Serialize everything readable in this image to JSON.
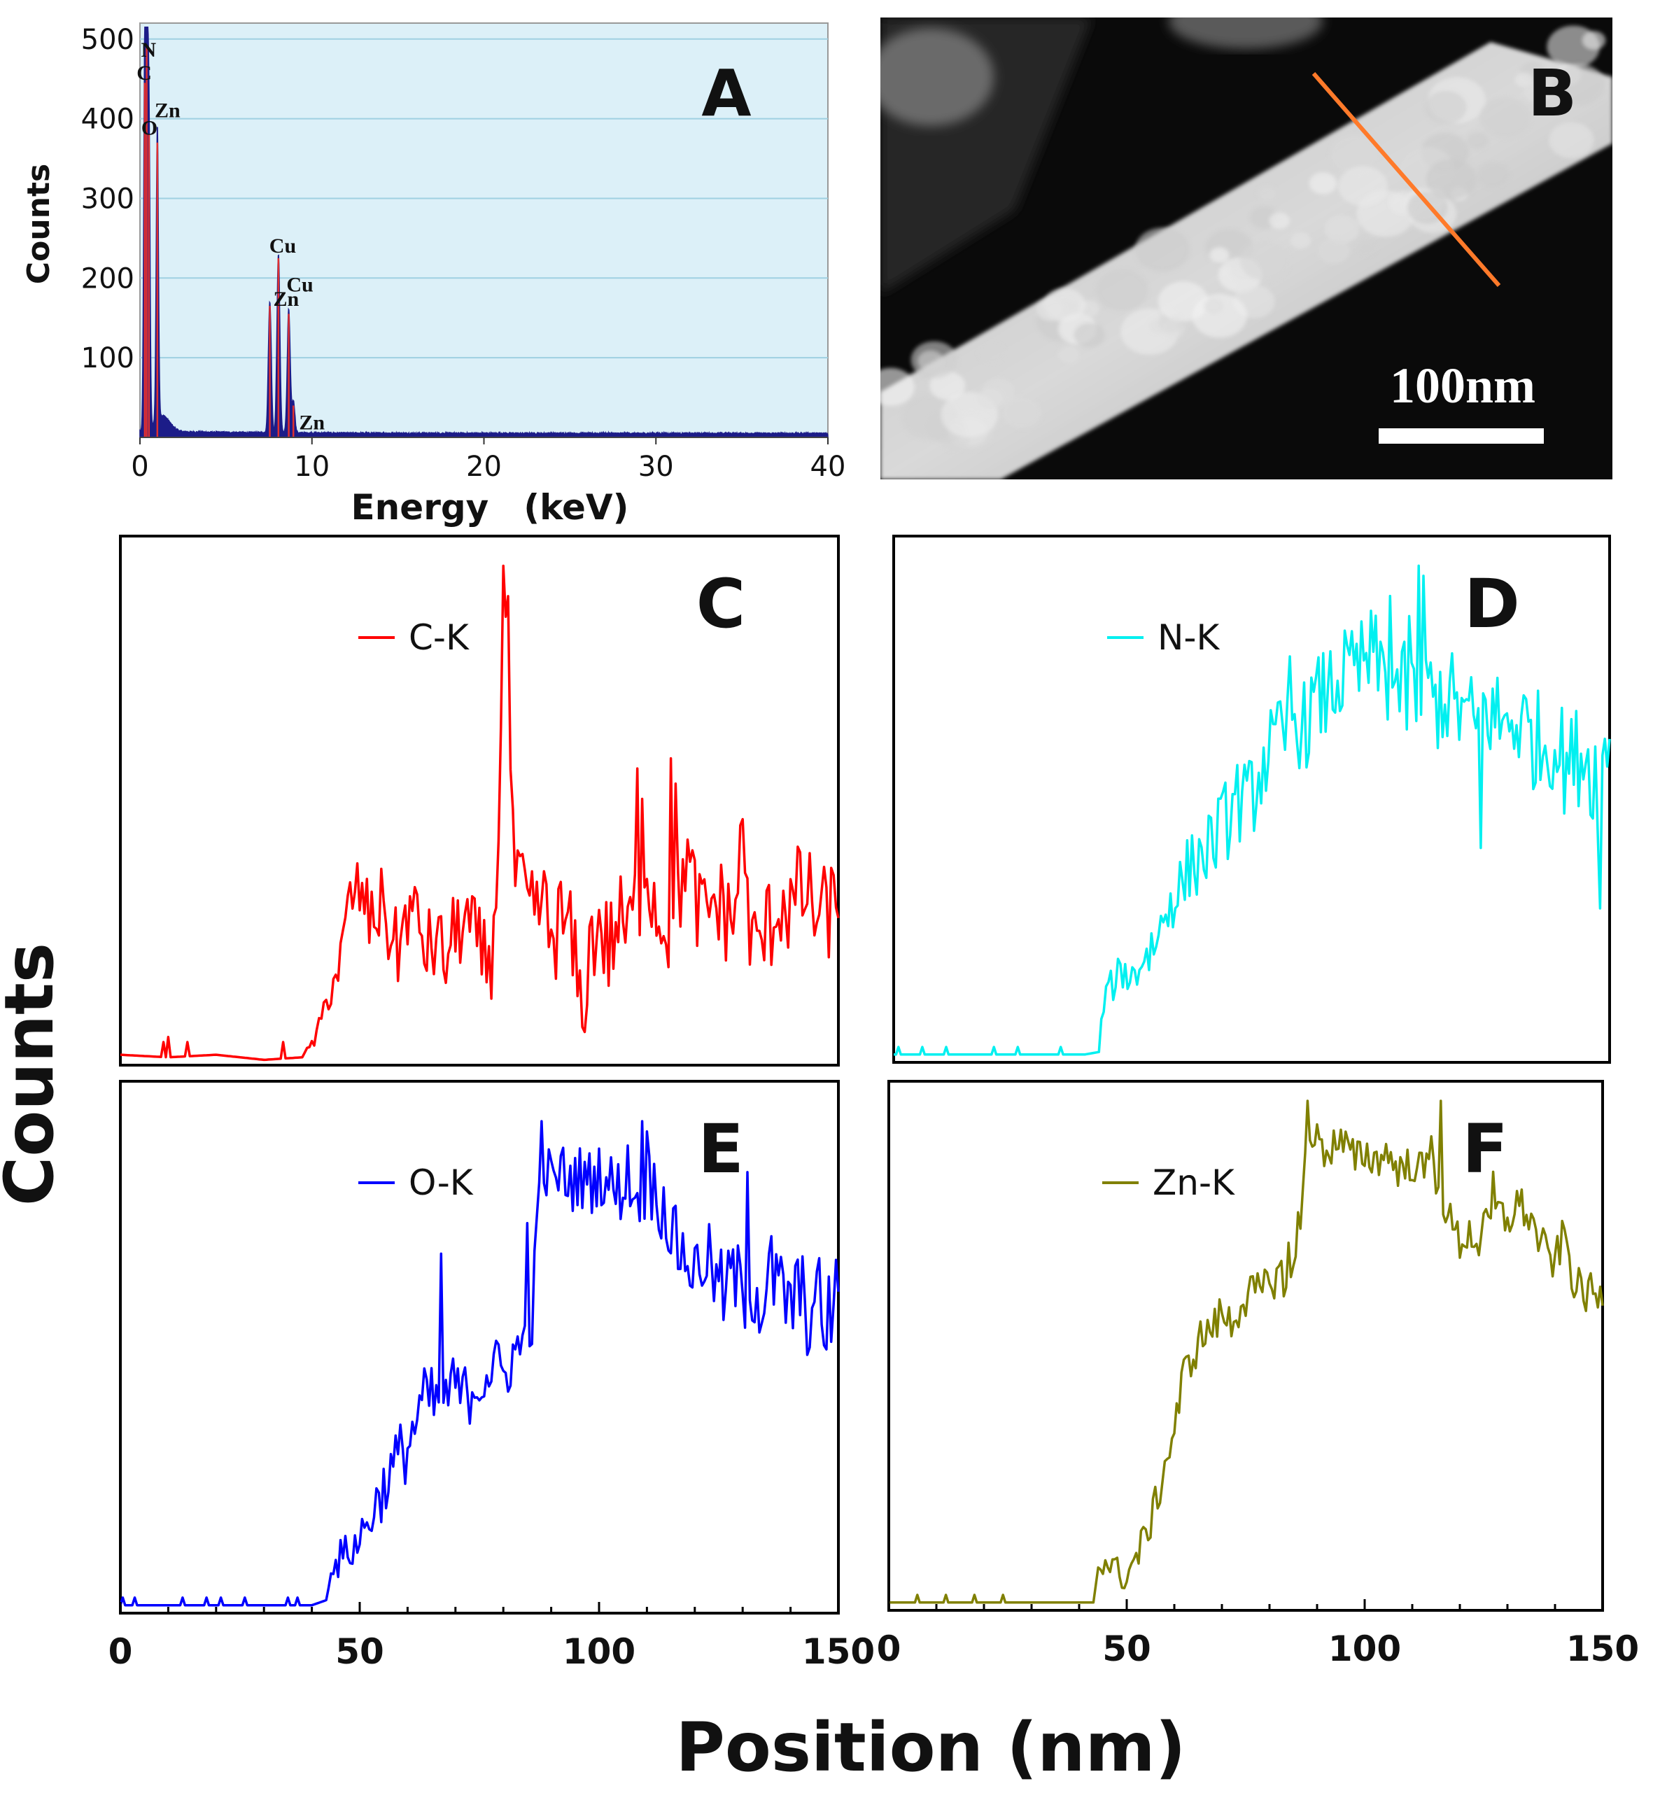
{
  "figure": {
    "shared_ylabel": "Counts",
    "shared_xlabel": "Position (nm)"
  },
  "colors": {
    "spectrum_bg": "#dcf0f8",
    "spectrum_grid": "#9fd0e2",
    "spectrum_fill": "#1c1c88",
    "spectrum_peak_line": "#e03030",
    "scan_line": "#ff7a2a",
    "c_k": "#ff0000",
    "n_k": "#00f0f0",
    "o_k": "#0000ff",
    "zn_k": "#808000"
  },
  "image_panel": {
    "panel_label": "B",
    "scale_bar_label": "100nm"
  },
  "chart_data": [
    {
      "panel_label": "A",
      "type": "area",
      "xlabel": "Energy　(keV)",
      "ylabel": "Counts",
      "xlim": [
        0,
        40
      ],
      "ylim": [
        0,
        520
      ],
      "xticks": [
        0,
        10,
        20,
        30,
        40
      ],
      "yticks": [
        100,
        200,
        300,
        400,
        500
      ],
      "grid": true,
      "peaks": [
        {
          "x": 0.28,
          "y": 445
        },
        {
          "x": 0.39,
          "y": 490
        },
        {
          "x": 0.52,
          "y": 380
        },
        {
          "x": 1.01,
          "y": 370
        },
        {
          "x": 7.55,
          "y": 165
        },
        {
          "x": 8.05,
          "y": 225
        },
        {
          "x": 8.65,
          "y": 155
        },
        {
          "x": 8.92,
          "y": 40
        }
      ],
      "annotations": [
        {
          "text": "N",
          "x": 0.5,
          "y": 478
        },
        {
          "text": "C",
          "x": 0.25,
          "y": 449
        },
        {
          "text": "Zn",
          "x": 1.6,
          "y": 402
        },
        {
          "text": "O",
          "x": 0.55,
          "y": 380
        },
        {
          "text": "Cu",
          "x": 8.3,
          "y": 232
        },
        {
          "text": "Cu",
          "x": 9.3,
          "y": 183
        },
        {
          "text": "Zn",
          "x": 8.5,
          "y": 165
        },
        {
          "text": "Zn",
          "x": 10.0,
          "y": 10
        }
      ]
    },
    {
      "panel_label": "C",
      "type": "line",
      "series_name": "C-K",
      "color_key": "c_k",
      "xlim": [
        0,
        150
      ],
      "ylim": [
        0,
        100
      ],
      "anchors": [
        [
          0,
          1.5
        ],
        [
          10,
          1
        ],
        [
          20,
          1.5
        ],
        [
          30,
          0.5
        ],
        [
          38,
          1
        ],
        [
          41,
          5
        ],
        [
          43,
          12
        ],
        [
          46,
          20
        ],
        [
          48,
          32
        ],
        [
          50,
          34
        ],
        [
          52,
          28
        ],
        [
          54,
          30
        ],
        [
          55,
          32
        ],
        [
          56,
          26
        ],
        [
          58,
          22
        ],
        [
          60,
          30
        ],
        [
          62,
          28
        ],
        [
          64,
          22
        ],
        [
          66,
          24
        ],
        [
          68,
          20
        ],
        [
          70,
          26
        ],
        [
          72,
          28
        ],
        [
          74,
          24
        ],
        [
          76,
          20
        ],
        [
          78,
          22
        ],
        [
          79,
          48
        ],
        [
          80,
          95
        ],
        [
          81,
          75
        ],
        [
          82,
          40
        ],
        [
          84,
          32
        ],
        [
          86,
          28
        ],
        [
          88,
          32
        ],
        [
          90,
          24
        ],
        [
          92,
          28
        ],
        [
          94,
          25
        ],
        [
          96,
          12
        ],
        [
          98,
          22
        ],
        [
          100,
          28
        ],
        [
          102,
          22
        ],
        [
          104,
          28
        ],
        [
          106,
          25
        ],
        [
          108,
          32
        ],
        [
          110,
          40
        ],
        [
          112,
          30
        ],
        [
          114,
          28
        ],
        [
          116,
          24
        ],
        [
          118,
          42
        ],
        [
          120,
          32
        ],
        [
          122,
          28
        ],
        [
          124,
          32
        ],
        [
          126,
          30
        ],
        [
          128,
          28
        ],
        [
          130,
          44
        ],
        [
          132,
          22
        ],
        [
          134,
          24
        ],
        [
          136,
          28
        ],
        [
          138,
          32
        ],
        [
          140,
          30
        ],
        [
          142,
          34
        ],
        [
          144,
          32
        ],
        [
          146,
          28
        ],
        [
          148,
          30
        ],
        [
          150,
          31
        ]
      ],
      "noise": [
        [
          38,
          0
        ],
        [
          43,
          3
        ],
        [
          48,
          7
        ],
        [
          78,
          9
        ],
        [
          82,
          10
        ],
        [
          150,
          10
        ]
      ],
      "spikes": [
        [
          9,
          4
        ],
        [
          10,
          5
        ],
        [
          14,
          4
        ],
        [
          34,
          4
        ],
        [
          80,
          98
        ],
        [
          81,
          92
        ],
        [
          108,
          58
        ],
        [
          109,
          52
        ],
        [
          115,
          60
        ],
        [
          116,
          55
        ],
        [
          97,
          6
        ],
        [
          130,
          48
        ]
      ]
    },
    {
      "panel_label": "D",
      "type": "line",
      "series_name": "N-K",
      "color_key": "n_k",
      "xlim": [
        0,
        150
      ],
      "ylim": [
        0,
        100
      ],
      "anchors": [
        [
          0,
          1
        ],
        [
          20,
          1
        ],
        [
          40,
          1
        ],
        [
          43,
          1.5
        ],
        [
          44,
          12
        ],
        [
          46,
          15
        ],
        [
          48,
          18
        ],
        [
          50,
          16
        ],
        [
          52,
          20
        ],
        [
          54,
          22
        ],
        [
          56,
          26
        ],
        [
          58,
          32
        ],
        [
          60,
          34
        ],
        [
          62,
          38
        ],
        [
          64,
          40
        ],
        [
          66,
          42
        ],
        [
          68,
          45
        ],
        [
          70,
          48
        ],
        [
          72,
          52
        ],
        [
          74,
          50
        ],
        [
          76,
          55
        ],
        [
          78,
          60
        ],
        [
          80,
          62
        ],
        [
          82,
          64
        ],
        [
          84,
          68
        ],
        [
          86,
          66
        ],
        [
          88,
          70
        ],
        [
          90,
          72
        ],
        [
          92,
          74
        ],
        [
          94,
          76
        ],
        [
          96,
          75
        ],
        [
          98,
          78
        ],
        [
          100,
          80
        ],
        [
          102,
          78
        ],
        [
          104,
          75
        ],
        [
          106,
          74
        ],
        [
          108,
          72
        ],
        [
          110,
          70
        ],
        [
          112,
          73
        ],
        [
          114,
          71
        ],
        [
          116,
          72
        ],
        [
          118,
          70
        ],
        [
          120,
          68
        ],
        [
          122,
          66
        ],
        [
          124,
          70
        ],
        [
          126,
          68
        ],
        [
          128,
          66
        ],
        [
          130,
          68
        ],
        [
          132,
          66
        ],
        [
          134,
          64
        ],
        [
          136,
          62
        ],
        [
          138,
          64
        ],
        [
          140,
          60
        ],
        [
          142,
          58
        ],
        [
          144,
          62
        ],
        [
          146,
          58
        ],
        [
          148,
          56
        ],
        [
          150,
          62
        ]
      ],
      "noise": [
        [
          43,
          0
        ],
        [
          44,
          3
        ],
        [
          55,
          6
        ],
        [
          75,
          9
        ],
        [
          110,
          10
        ],
        [
          150,
          11
        ]
      ],
      "spikes": [
        [
          1,
          2.5
        ],
        [
          6,
          2.5
        ],
        [
          11,
          2.5
        ],
        [
          21,
          2.5
        ],
        [
          26,
          2.5
        ],
        [
          35,
          2.5
        ],
        [
          110,
          98
        ],
        [
          111,
          96
        ],
        [
          108,
          88
        ],
        [
          104,
          92
        ],
        [
          96,
          85
        ],
        [
          83,
          80
        ],
        [
          148,
          30
        ],
        [
          123,
          42
        ]
      ]
    },
    {
      "panel_label": "E",
      "type": "line",
      "series_name": "O-K",
      "color_key": "o_k",
      "xlim": [
        0,
        150
      ],
      "ylim": [
        0,
        100
      ],
      "anchors": [
        [
          0,
          1
        ],
        [
          20,
          1
        ],
        [
          40,
          1
        ],
        [
          43,
          2
        ],
        [
          44,
          8
        ],
        [
          46,
          10
        ],
        [
          48,
          12
        ],
        [
          50,
          14
        ],
        [
          52,
          18
        ],
        [
          54,
          22
        ],
        [
          56,
          26
        ],
        [
          58,
          30
        ],
        [
          60,
          32
        ],
        [
          62,
          38
        ],
        [
          64,
          42
        ],
        [
          66,
          40
        ],
        [
          68,
          42
        ],
        [
          70,
          44
        ],
        [
          72,
          42
        ],
        [
          74,
          44
        ],
        [
          76,
          46
        ],
        [
          78,
          48
        ],
        [
          80,
          46
        ],
        [
          82,
          50
        ],
        [
          84,
          52
        ],
        [
          86,
          58
        ],
        [
          88,
          88
        ],
        [
          90,
          84
        ],
        [
          92,
          86
        ],
        [
          94,
          84
        ],
        [
          96,
          85
        ],
        [
          98,
          84
        ],
        [
          100,
          86
        ],
        [
          102,
          84
        ],
        [
          104,
          82
        ],
        [
          106,
          86
        ],
        [
          108,
          80
        ],
        [
          110,
          84
        ],
        [
          112,
          82
        ],
        [
          114,
          78
        ],
        [
          116,
          72
        ],
        [
          118,
          70
        ],
        [
          120,
          66
        ],
        [
          122,
          70
        ],
        [
          124,
          66
        ],
        [
          126,
          62
        ],
        [
          128,
          66
        ],
        [
          130,
          62
        ],
        [
          132,
          64
        ],
        [
          134,
          60
        ],
        [
          136,
          66
        ],
        [
          138,
          62
        ],
        [
          140,
          60
        ],
        [
          142,
          62
        ],
        [
          144,
          58
        ],
        [
          146,
          60
        ],
        [
          148,
          58
        ],
        [
          150,
          62
        ]
      ],
      "noise": [
        [
          43,
          0
        ],
        [
          46,
          4
        ],
        [
          60,
          7
        ],
        [
          87,
          6
        ],
        [
          110,
          7
        ],
        [
          150,
          10
        ]
      ],
      "spikes": [
        [
          0.5,
          2.5
        ],
        [
          3,
          2.5
        ],
        [
          13,
          2.5
        ],
        [
          18,
          2.5
        ],
        [
          21,
          2.5
        ],
        [
          26,
          2.5
        ],
        [
          35,
          2.5
        ],
        [
          37,
          2.5
        ],
        [
          88,
          96
        ],
        [
          109,
          96
        ],
        [
          110,
          94
        ],
        [
          67,
          70
        ],
        [
          85,
          76
        ],
        [
          131,
          86
        ],
        [
          147,
          52
        ]
      ]
    },
    {
      "panel_label": "F",
      "type": "line",
      "series_name": "Zn-K",
      "color_key": "zn_k",
      "xlim": [
        0,
        150
      ],
      "ylim": [
        0,
        100
      ],
      "anchors": [
        [
          0,
          1
        ],
        [
          20,
          1
        ],
        [
          40,
          1
        ],
        [
          43,
          1
        ],
        [
          44,
          8
        ],
        [
          46,
          9
        ],
        [
          48,
          7
        ],
        [
          50,
          6
        ],
        [
          52,
          10
        ],
        [
          54,
          14
        ],
        [
          56,
          20
        ],
        [
          58,
          28
        ],
        [
          60,
          35
        ],
        [
          62,
          46
        ],
        [
          64,
          50
        ],
        [
          66,
          54
        ],
        [
          68,
          55
        ],
        [
          70,
          58
        ],
        [
          72,
          56
        ],
        [
          74,
          60
        ],
        [
          76,
          62
        ],
        [
          78,
          62
        ],
        [
          80,
          64
        ],
        [
          82,
          66
        ],
        [
          84,
          64
        ],
        [
          86,
          68
        ],
        [
          88,
          96
        ],
        [
          90,
          92
        ],
        [
          92,
          90
        ],
        [
          94,
          92
        ],
        [
          96,
          91
        ],
        [
          98,
          88
        ],
        [
          100,
          90
        ],
        [
          102,
          88
        ],
        [
          104,
          90
        ],
        [
          106,
          88
        ],
        [
          108,
          86
        ],
        [
          110,
          88
        ],
        [
          112,
          86
        ],
        [
          114,
          88
        ],
        [
          116,
          82
        ],
        [
          118,
          76
        ],
        [
          120,
          72
        ],
        [
          122,
          74
        ],
        [
          124,
          72
        ],
        [
          126,
          76
        ],
        [
          128,
          78
        ],
        [
          130,
          76
        ],
        [
          132,
          80
        ],
        [
          134,
          78
        ],
        [
          136,
          74
        ],
        [
          138,
          70
        ],
        [
          140,
          68
        ],
        [
          142,
          74
        ],
        [
          144,
          64
        ],
        [
          146,
          62
        ],
        [
          148,
          62
        ],
        [
          150,
          60
        ]
      ],
      "noise": [
        [
          43,
          0
        ],
        [
          46,
          3
        ],
        [
          58,
          4
        ],
        [
          87,
          4
        ],
        [
          110,
          4
        ],
        [
          150,
          4
        ]
      ],
      "spikes": [
        [
          6,
          2.5
        ],
        [
          12,
          2.5
        ],
        [
          18,
          2.5
        ],
        [
          24,
          2.5
        ],
        [
          88,
          100
        ],
        [
          114,
          93
        ],
        [
          116,
          100
        ],
        [
          127,
          86
        ],
        [
          84,
          72
        ],
        [
          86,
          78
        ]
      ]
    }
  ],
  "bottom_axes": [
    {
      "xlim": [
        0,
        150
      ],
      "tick_labels": [
        "0",
        "50",
        "100",
        "150"
      ],
      "tick_values": [
        0,
        50,
        100,
        150
      ]
    },
    {
      "xlim": [
        0,
        150
      ],
      "tick_labels": [
        "0",
        "50",
        "100",
        "150"
      ],
      "tick_values": [
        0,
        50,
        100,
        150
      ]
    }
  ]
}
